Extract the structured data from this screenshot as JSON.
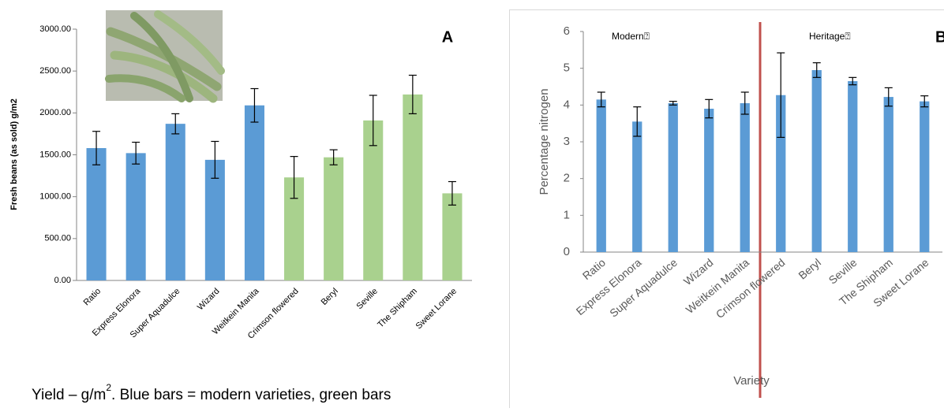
{
  "chart_data": [
    {
      "type": "bar",
      "title": "A",
      "ylabel": "Fresh beans (as sold) g/m2",
      "categories": [
        "Ratio",
        "Express Elonora",
        "Super Aquadulce",
        "Wizard",
        "Weitkein Manita",
        "Crimson flowered",
        "Beryl",
        "Seville",
        "The Shipham",
        "Sweet Lorane"
      ],
      "values": [
        1580,
        1520,
        1870,
        1440,
        2090,
        1230,
        1470,
        1910,
        2220,
        1040
      ],
      "errors": [
        200,
        130,
        120,
        220,
        200,
        250,
        90,
        300,
        230,
        140
      ],
      "colors": [
        "#5b9bd5",
        "#5b9bd5",
        "#5b9bd5",
        "#5b9bd5",
        "#5b9bd5",
        "#a9d18e",
        "#a9d18e",
        "#a9d18e",
        "#a9d18e",
        "#a9d18e"
      ],
      "ylim": [
        0,
        3000
      ],
      "yticks": [
        {
          "value": 0,
          "label": "0.00"
        },
        {
          "value": 500,
          "label": "500.00"
        },
        {
          "value": 1000,
          "label": "1000.00"
        },
        {
          "value": 1500,
          "label": "1500.00"
        },
        {
          "value": 2000,
          "label": "2000.00"
        },
        {
          "value": 2500,
          "label": "2500.00"
        },
        {
          "value": 3000,
          "label": "3000.00"
        }
      ]
    },
    {
      "type": "bar",
      "title": "B",
      "xlabel": "Variety",
      "ylabel": "Percentage nitrogen",
      "annotations": [
        "Modern⍰",
        "Heritage⍰"
      ],
      "categories": [
        "Ratio",
        "Express Elonora",
        "Super Aquadulce",
        "Wizard",
        "Weitkein Manita",
        "Crimson flowered",
        "Beryl",
        "Seville",
        "The Shipham",
        "Sweet Lorane"
      ],
      "values": [
        4.15,
        3.55,
        4.05,
        3.9,
        4.05,
        4.27,
        4.95,
        4.65,
        4.22,
        4.1
      ],
      "errors": [
        0.2,
        0.4,
        0.05,
        0.25,
        0.3,
        1.15,
        0.2,
        0.1,
        0.25,
        0.15
      ],
      "color": "#5b9bd5",
      "ylim": [
        0,
        6
      ],
      "yticks": [
        0,
        1,
        2,
        3,
        4,
        5,
        6
      ]
    }
  ],
  "caption": {
    "text": "Yield – g/m",
    "superscript": "2",
    "rest": ". Blue bars = modern varieties, green bars"
  }
}
